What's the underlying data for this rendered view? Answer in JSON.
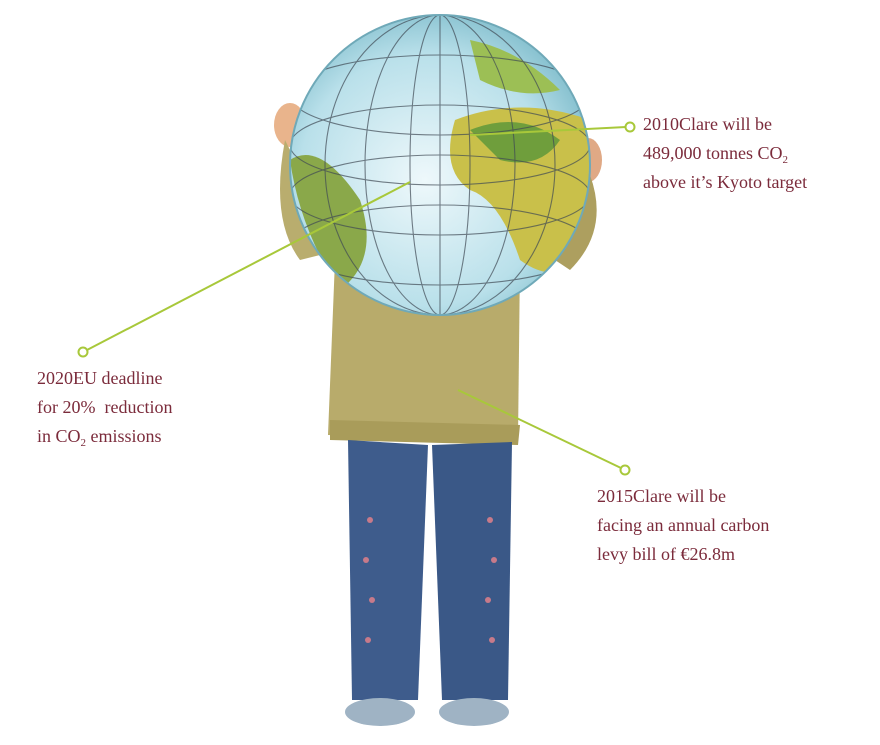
{
  "callouts": [
    {
      "year": "2010",
      "lines": [
        {
          "text": "Clare will be"
        },
        {
          "text": "489,000 tonnes CO",
          "sub": "2"
        },
        {
          "text": "above it’s Kyoto target"
        }
      ]
    },
    {
      "year": "2020",
      "lines": [
        {
          "text": "EU deadline"
        },
        {
          "text": "for 20%  reduction"
        },
        {
          "text": "in CO",
          "sub": "2",
          "rest": " emissions"
        }
      ]
    },
    {
      "year": "2015",
      "lines": [
        {
          "text": "Clare will be"
        },
        {
          "text": "facing an annual carbon"
        },
        {
          "text": "levy bill of €26.8m"
        }
      ]
    }
  ]
}
